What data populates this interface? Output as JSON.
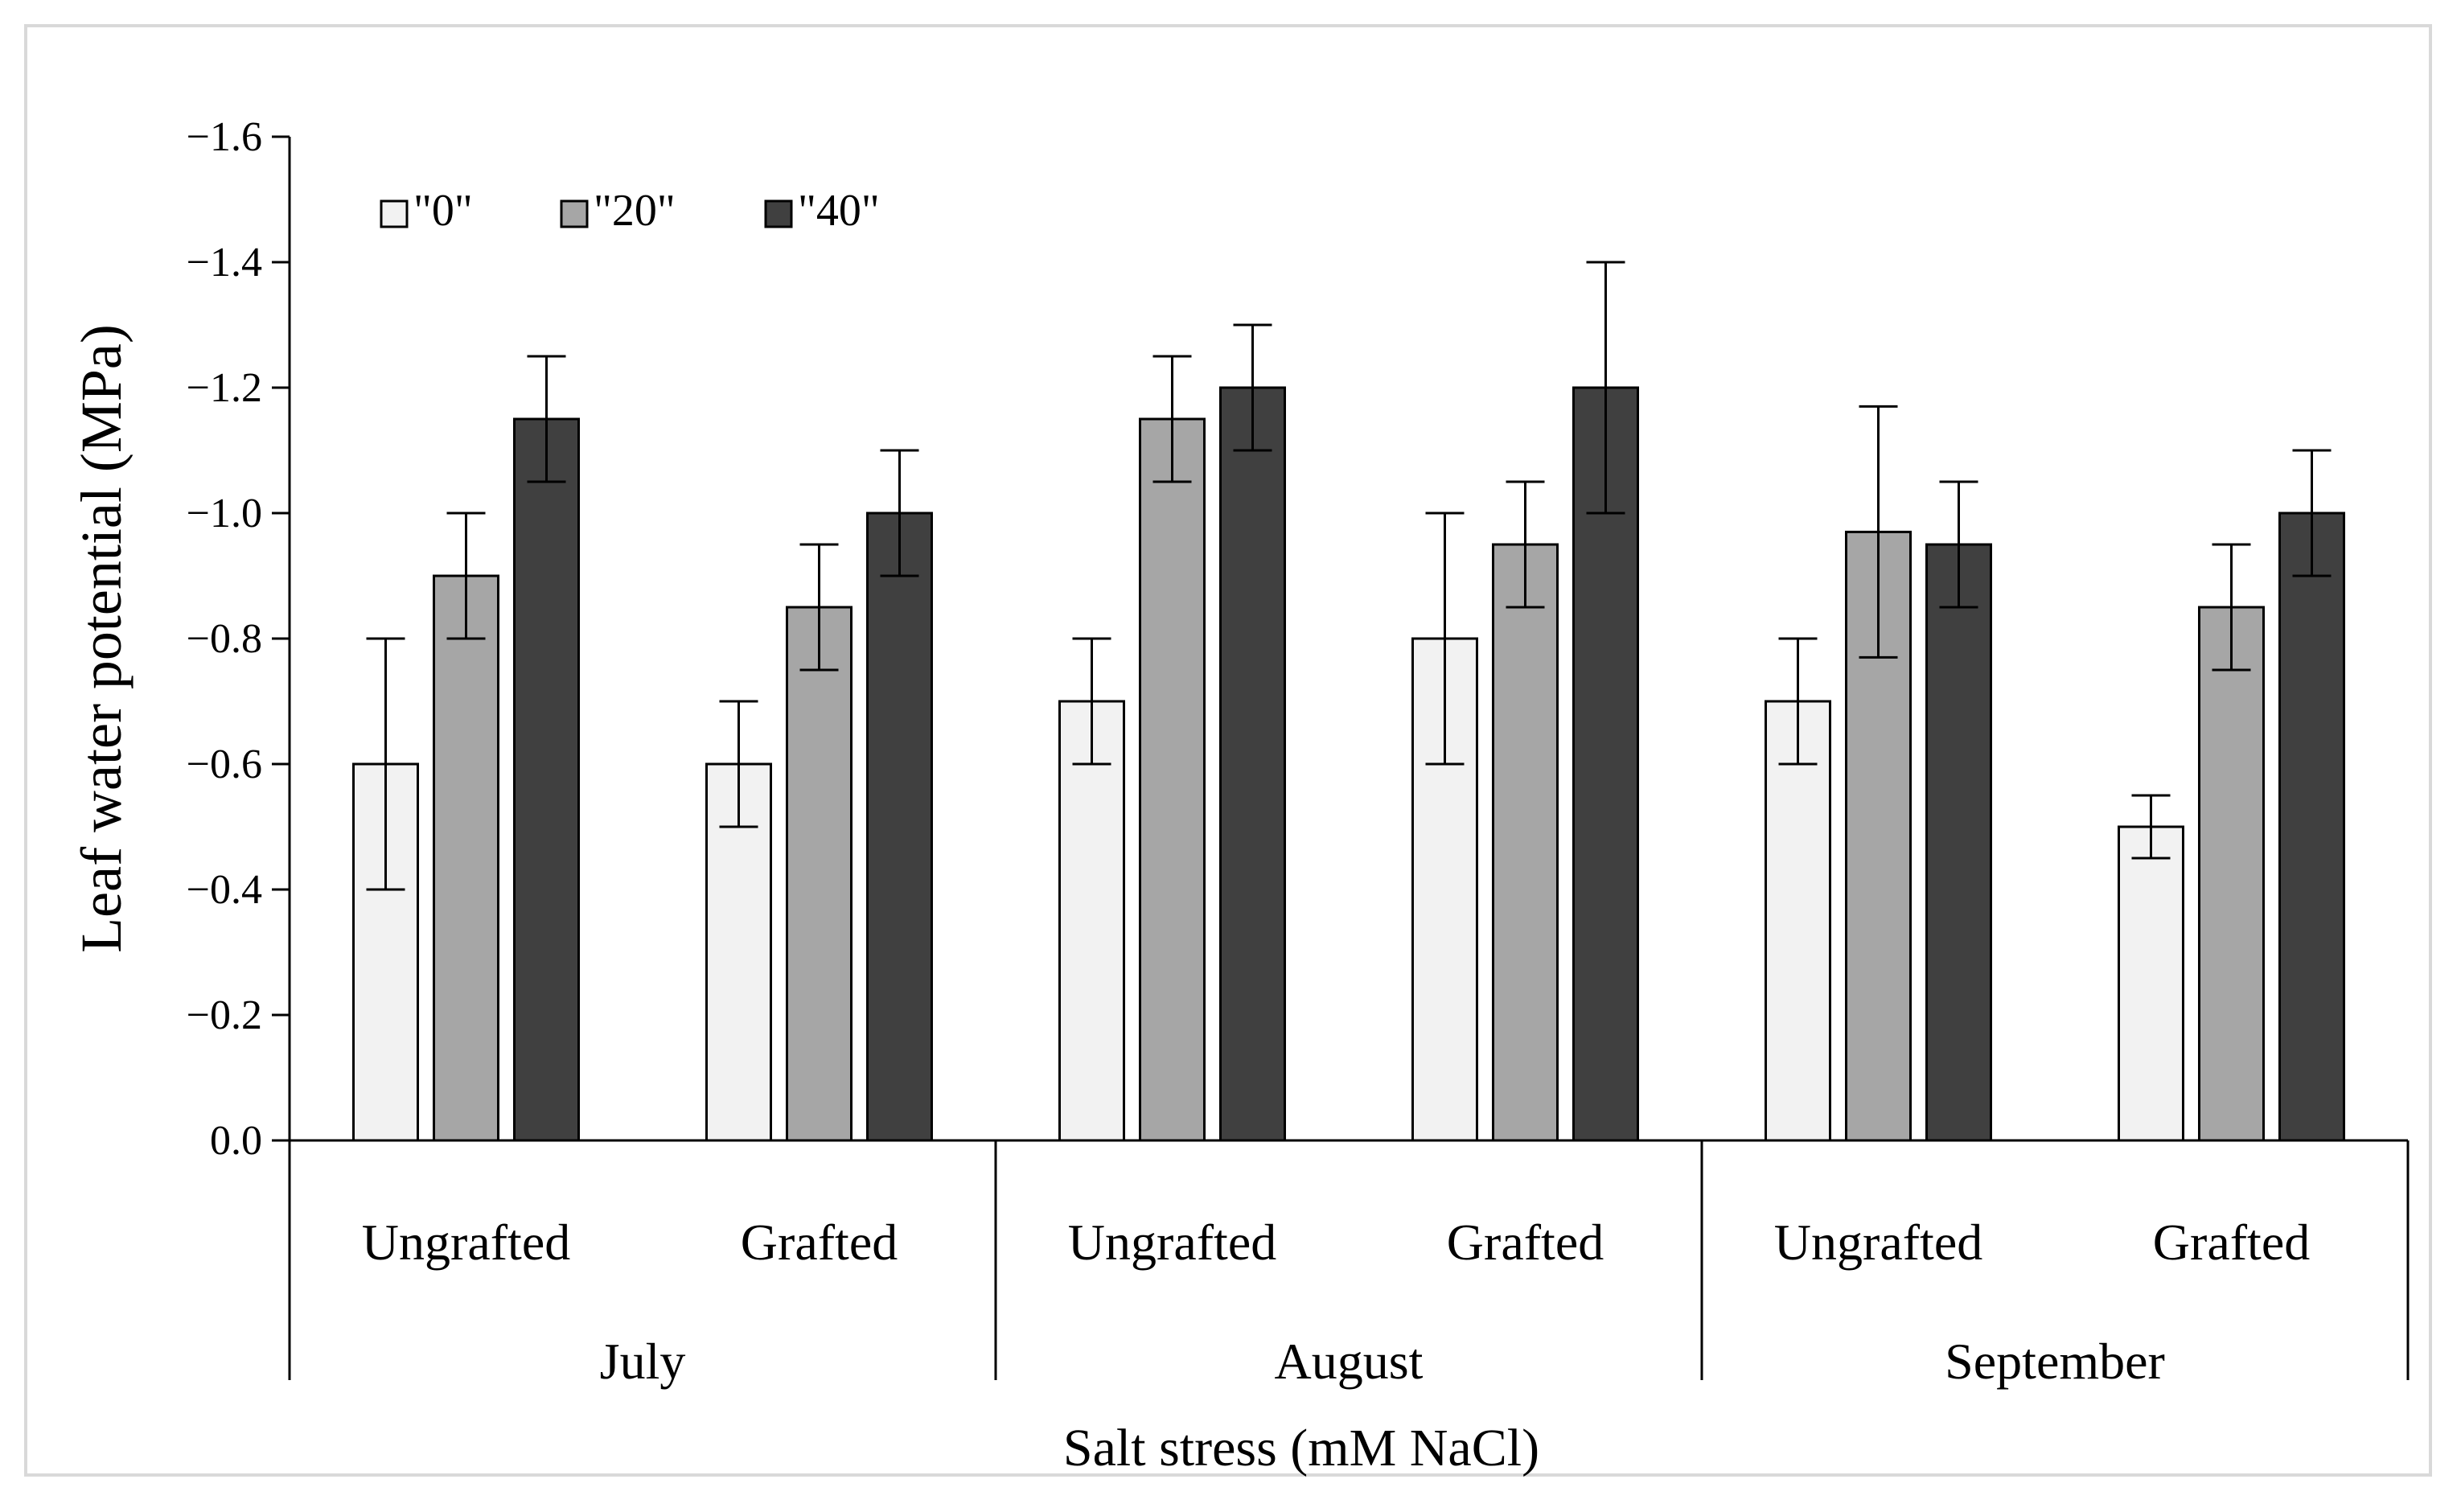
{
  "chart_data": {
    "type": "bar",
    "title": "",
    "ylabel": "Leaf water potential (MPa)",
    "xlabel": "Salt stress (mM NaCl)",
    "ylim": [
      0,
      -1.6
    ],
    "yticks": [
      0.0,
      -0.2,
      -0.4,
      -0.6,
      -0.8,
      -1.0,
      -1.2,
      -1.4,
      -1.6
    ],
    "ytick_labels": [
      "0.0",
      "−0.2",
      "−0.4",
      "−0.6",
      "−0.8",
      "−1.0",
      "−1.2",
      "−1.4",
      "−1.6"
    ],
    "groups": [
      "July",
      "August",
      "September"
    ],
    "categories": [
      "Ungrafted",
      "Grafted",
      "Ungrafted",
      "Grafted",
      "Ungrafted",
      "Grafted"
    ],
    "legend_position": "top-left",
    "series": [
      {
        "name": "\"0\"",
        "color": "#f2f2f2",
        "values": [
          -0.6,
          -0.6,
          -0.7,
          -0.8,
          -0.7,
          -0.5
        ],
        "errors": [
          0.2,
          0.1,
          0.1,
          0.2,
          0.1,
          0.05
        ]
      },
      {
        "name": "\"20\"",
        "color": "#a6a6a6",
        "values": [
          -0.9,
          -0.85,
          -1.15,
          -0.95,
          -0.97,
          -0.85
        ],
        "errors": [
          0.1,
          0.1,
          0.1,
          0.1,
          0.2,
          0.1
        ]
      },
      {
        "name": "\"40\"",
        "color": "#404040",
        "values": [
          -1.15,
          -1.0,
          -1.2,
          -1.2,
          -0.95,
          -1.0
        ],
        "errors": [
          0.1,
          0.1,
          0.1,
          0.2,
          0.1,
          0.1
        ]
      }
    ]
  }
}
